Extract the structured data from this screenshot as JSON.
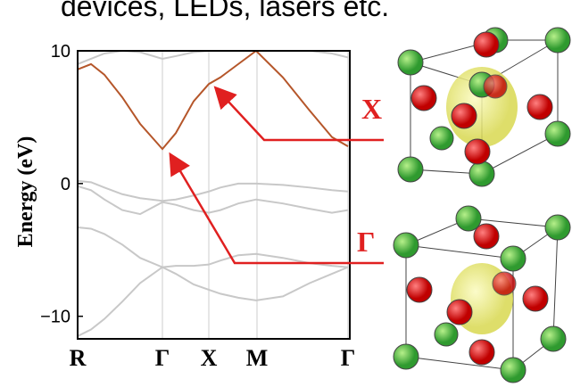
{
  "chart_data": {
    "type": "line",
    "top_text": "devices, LEDs, lasers etc.",
    "y_label": "Energy (eV)",
    "annotations": [
      "X",
      "Γ"
    ],
    "x": [
      0,
      0.15,
      0.3,
      0.5,
      0.7,
      0.95,
      1.1,
      1.3,
      1.47,
      1.6,
      1.8,
      2.0,
      2.3,
      2.6,
      2.85,
      3.03
    ],
    "xlim": [
      0,
      3.05
    ],
    "xticks": [
      {
        "value": 0,
        "label": "R"
      },
      {
        "value": 0.95,
        "label": "Γ"
      },
      {
        "value": 1.47,
        "label": "X"
      },
      {
        "value": 2.01,
        "label": "M"
      },
      {
        "value": 3.03,
        "label": "Γ"
      }
    ],
    "ylim": [
      -11.7,
      10
    ],
    "yticks": [
      {
        "value": -10,
        "label": "−10"
      },
      0,
      10
    ],
    "series": [
      {
        "color": "#c8c8c8",
        "values": [
          9.0,
          9.4,
          9.8,
          10,
          9.9,
          9.4,
          9.6,
          9.9,
          10,
          10,
          10,
          10,
          10,
          10,
          9.8,
          9.5
        ]
      },
      {
        "color": "#c8c8c8",
        "values": [
          0.2,
          0.1,
          -0.3,
          -0.8,
          -1.1,
          -1.3,
          -1.2,
          -0.9,
          -0.6,
          -0.3,
          0.0,
          0.0,
          -0.1,
          -0.3,
          -0.5,
          -0.6
        ]
      },
      {
        "color": "#c8c8c8",
        "values": [
          -0.2,
          -0.5,
          -1.2,
          -2.0,
          -2.3,
          -1.4,
          -1.6,
          -2.0,
          -2.2,
          -2.0,
          -1.5,
          -1.2,
          -1.5,
          -1.9,
          -2.2,
          -2.0
        ]
      },
      {
        "color": "#c8c8c8",
        "values": [
          -3.3,
          -3.4,
          -3.8,
          -4.6,
          -5.6,
          -6.3,
          -6.2,
          -6.2,
          -6.1,
          -5.8,
          -5.4,
          -5.3,
          -5.6,
          -6.0,
          -6.2,
          -6.3
        ]
      },
      {
        "color": "#c8c8c8",
        "values": [
          -11.5,
          -11.0,
          -10.2,
          -8.9,
          -7.5,
          -6.3,
          -6.8,
          -7.6,
          -8.0,
          -8.3,
          -8.6,
          -8.8,
          -8.5,
          -7.5,
          -6.8,
          -6.3
        ]
      },
      {
        "color": "#b5562a",
        "values": [
          8.6,
          9.0,
          8.2,
          6.5,
          4.5,
          2.6,
          3.8,
          6.2,
          7.5,
          8.0,
          9.0,
          10.0,
          8.0,
          5.5,
          3.5,
          2.8
        ]
      }
    ]
  }
}
